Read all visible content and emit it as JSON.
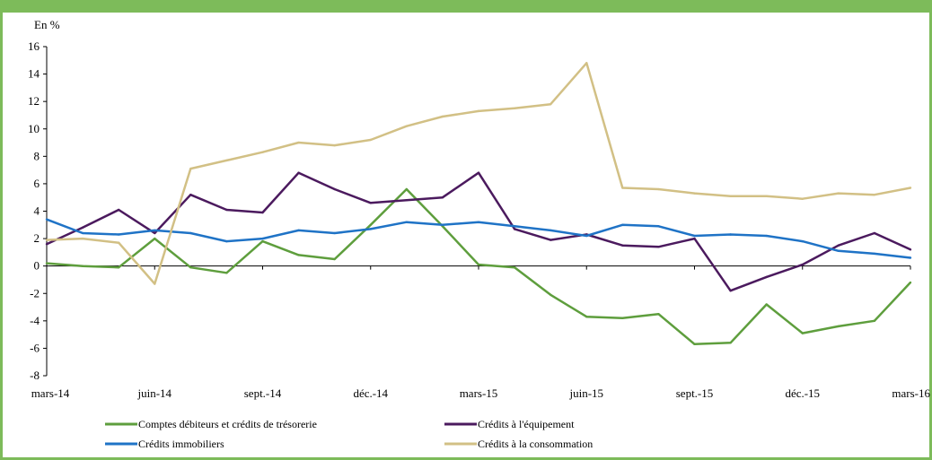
{
  "chart_data": {
    "type": "line",
    "unit_label": "En %",
    "title": "",
    "xlabel": "",
    "ylabel": "",
    "ylim": [
      -8,
      16
    ],
    "yticks": [
      -8,
      -6,
      -4,
      -2,
      0,
      2,
      4,
      6,
      8,
      10,
      12,
      14,
      16
    ],
    "x_count": 25,
    "x_labels": [
      {
        "index": 0,
        "label": "mars-14"
      },
      {
        "index": 3,
        "label": "juin-14"
      },
      {
        "index": 6,
        "label": "sept.-14"
      },
      {
        "index": 9,
        "label": "déc.-14"
      },
      {
        "index": 12,
        "label": "mars-15"
      },
      {
        "index": 15,
        "label": "juin-15"
      },
      {
        "index": 18,
        "label": "sept.-15"
      },
      {
        "index": 21,
        "label": "déc.-15"
      },
      {
        "index": 24,
        "label": "mars-16"
      }
    ],
    "legend_position": "bottom",
    "series": [
      {
        "name": "Comptes débiteurs et crédits de trésorerie",
        "color": "#5e9e3d",
        "values": [
          0.2,
          0.0,
          -0.1,
          2.0,
          -0.1,
          -0.5,
          1.8,
          0.8,
          0.5,
          3.0,
          5.6,
          2.9,
          0.1,
          -0.1,
          -2.1,
          -3.7,
          -3.8,
          -3.5,
          -5.7,
          -5.6,
          -2.8,
          -4.9,
          -4.4,
          -4.0,
          -1.2
        ]
      },
      {
        "name": "Crédits à l'équipement",
        "color": "#4b1a5e",
        "values": [
          1.6,
          2.8,
          4.1,
          2.4,
          5.2,
          4.1,
          3.9,
          6.8,
          5.6,
          4.6,
          4.8,
          5.0,
          6.8,
          2.7,
          1.9,
          2.3,
          1.5,
          1.4,
          2.0,
          -1.8,
          -0.8,
          0.1,
          1.5,
          2.4,
          1.2
        ]
      },
      {
        "name": "Crédits immobiliers",
        "color": "#1f73c6",
        "values": [
          3.4,
          2.4,
          2.3,
          2.6,
          2.4,
          1.8,
          2.0,
          2.6,
          2.4,
          2.7,
          3.2,
          3.0,
          3.2,
          2.9,
          2.6,
          2.2,
          3.0,
          2.9,
          2.2,
          2.3,
          2.2,
          1.8,
          1.1,
          0.9,
          0.6
        ]
      },
      {
        "name": "Crédits à la consommation",
        "color": "#d2c085",
        "values": [
          1.9,
          2.0,
          1.7,
          -1.3,
          7.1,
          7.7,
          8.3,
          9.0,
          8.8,
          9.2,
          10.2,
          10.9,
          11.3,
          11.5,
          11.8,
          14.8,
          5.7,
          5.6,
          5.3,
          5.1,
          5.1,
          4.9,
          5.3,
          5.2,
          5.7
        ]
      }
    ]
  }
}
